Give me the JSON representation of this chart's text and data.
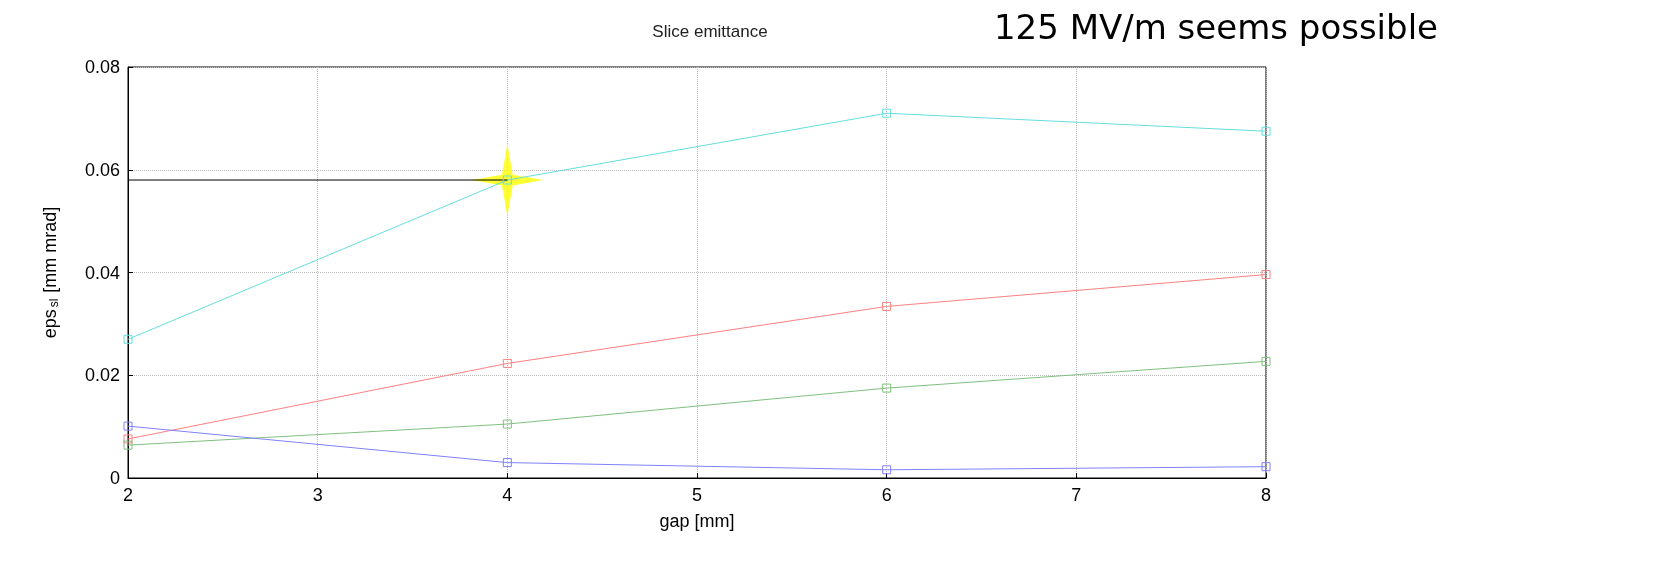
{
  "chart_data": {
    "type": "line",
    "title": "Slice emittance",
    "xlabel": "gap [mm]",
    "ylabel": "eps$_{sl}$ [mm mrad]",
    "annotations": [
      "125 MV/m seems possible"
    ],
    "x": [
      2,
      4,
      6,
      8
    ],
    "xlim": [
      2,
      8
    ],
    "xticks": [
      2,
      3,
      4,
      5,
      6,
      7,
      8
    ],
    "ylim": [
      0,
      0.08
    ],
    "yticks": [
      0,
      0.02,
      0.04,
      0.06,
      0.08
    ],
    "grid": true,
    "marker": "square",
    "line_style": "solid",
    "series": [
      {
        "color": "#66dddd",
        "values": [
          0.027,
          0.058,
          0.071,
          0.0675
        ]
      },
      {
        "color": "#ff8080",
        "values": [
          0.0076,
          0.0223,
          0.0334,
          0.0396
        ]
      },
      {
        "color": "#80c080",
        "values": [
          0.0064,
          0.0105,
          0.0175,
          0.0227
        ]
      },
      {
        "color": "#8080ff",
        "values": [
          0.0101,
          0.003,
          0.0016,
          0.0022
        ]
      },
      {
        "color": "#000000",
        "values": [
          0.058,
          0.058,
          null,
          null
        ],
        "marker": "none"
      },
      {
        "type": "scatter",
        "color": "#ffff00",
        "values": [
          null,
          0.058,
          null,
          null
        ],
        "marker": "star"
      }
    ]
  }
}
